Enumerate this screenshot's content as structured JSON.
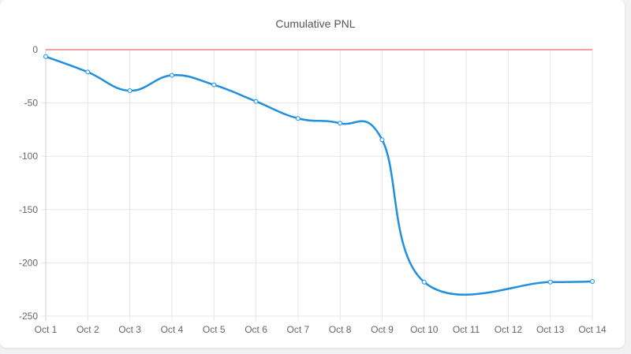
{
  "chart_data": {
    "type": "line",
    "title": "Cumulative PNL",
    "categories": [
      "Oct 1",
      "Oct 2",
      "Oct 3",
      "Oct 4",
      "Oct 5",
      "Oct 6",
      "Oct 7",
      "Oct 8",
      "Oct 9",
      "Oct 10",
      "Oct 11",
      "Oct 12",
      "Oct 13",
      "Oct 14"
    ],
    "series": [
      {
        "values": [
          -6.5,
          -21,
          -38.5,
          -24,
          -33,
          -48.5,
          -64.5,
          -69,
          -84.5,
          -218,
          null,
          null,
          -218,
          -217.5
        ],
        "color": "#1f8fe0"
      }
    ],
    "zero_line_color": "#f08080",
    "ylim": [
      -250,
      0
    ],
    "yticks": [
      0,
      -50,
      -100,
      -150,
      -200,
      -250
    ],
    "grid": true,
    "interpolation": "smooth",
    "legend": "none"
  }
}
